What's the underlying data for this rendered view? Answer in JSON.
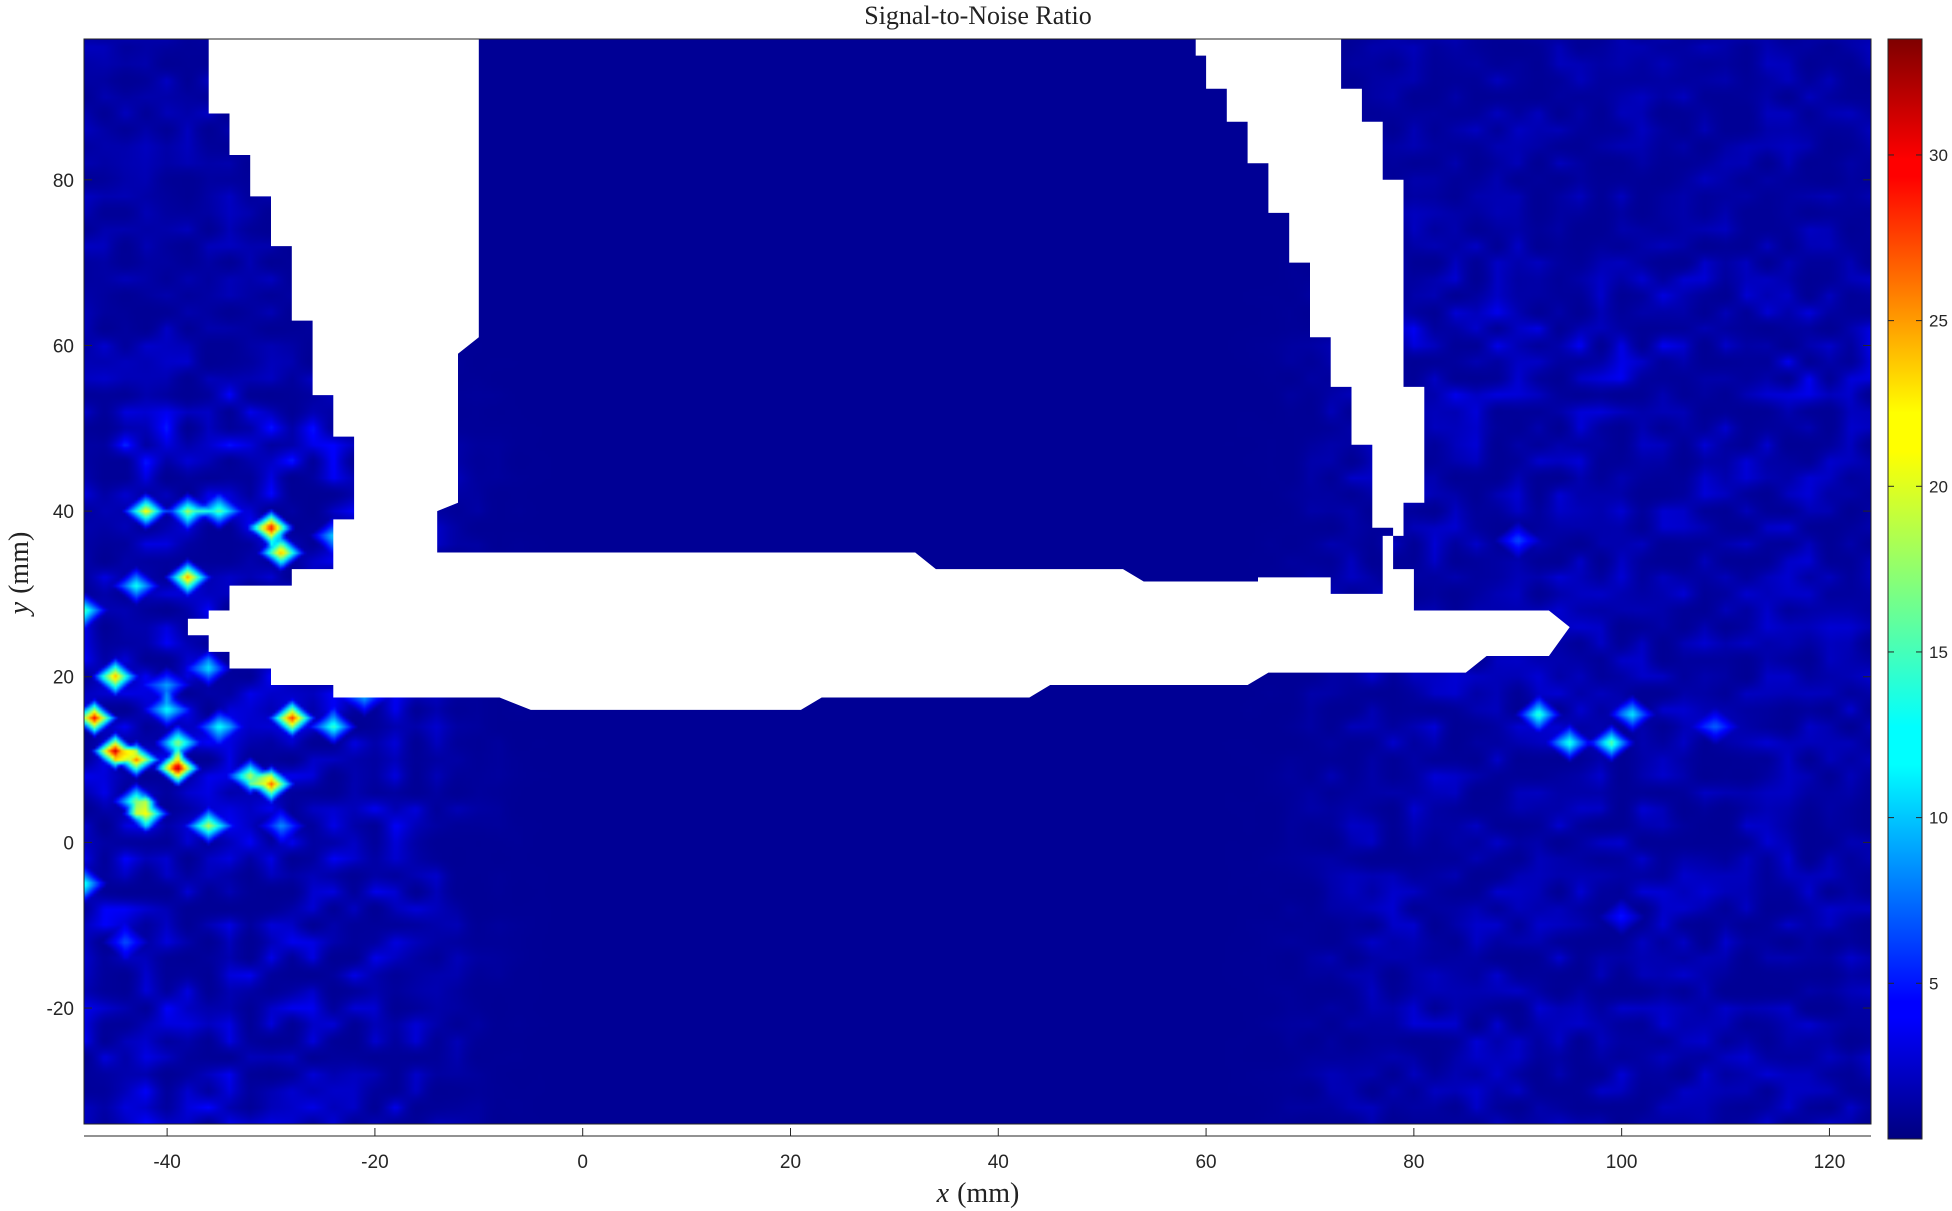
{
  "chart_data": {
    "type": "heatmap",
    "title": "Signal-to-Noise Ratio",
    "xlabel_var": "x",
    "xlabel_unit": "(mm)",
    "ylabel_var": "y",
    "ylabel_unit": "(mm)",
    "xlim": [
      -48,
      124
    ],
    "ylim": [
      -34,
      97
    ],
    "xticks": [
      -40,
      -20,
      0,
      20,
      40,
      60,
      80,
      100,
      120
    ],
    "yticks": [
      -20,
      0,
      20,
      40,
      60,
      80
    ],
    "colorbar": {
      "colormap": "jet",
      "range": [
        0.3,
        33.5
      ],
      "ticks": [
        5,
        10,
        15,
        20,
        25,
        30
      ]
    },
    "background_level": 1.0,
    "masked_color": "#ffffff",
    "masked_regions": [
      [
        [
          -36,
          97
        ],
        [
          -36,
          88
        ],
        [
          -34,
          88
        ],
        [
          -34,
          83
        ],
        [
          -32,
          83
        ],
        [
          -32,
          78
        ],
        [
          -30,
          78
        ],
        [
          -30,
          72
        ],
        [
          -28,
          72
        ],
        [
          -28,
          63
        ],
        [
          -26,
          63
        ],
        [
          -26,
          54
        ],
        [
          -24,
          54
        ],
        [
          -24,
          49
        ],
        [
          -22,
          49
        ],
        [
          -22,
          39
        ],
        [
          -24,
          39
        ],
        [
          -24,
          33
        ],
        [
          -28,
          33
        ],
        [
          -28,
          31
        ],
        [
          -34,
          31
        ],
        [
          -34,
          28
        ],
        [
          -36,
          28
        ],
        [
          -36,
          27
        ],
        [
          -38,
          27
        ],
        [
          -38,
          25
        ],
        [
          -36,
          25
        ],
        [
          -36,
          23
        ],
        [
          -34,
          23
        ],
        [
          -34,
          21
        ],
        [
          -30,
          21
        ],
        [
          -30,
          19
        ],
        [
          -24,
          19
        ],
        [
          -24,
          17.5
        ],
        [
          -8,
          17.5
        ],
        [
          -8,
          17.5
        ],
        [
          -5,
          16
        ],
        [
          21,
          16
        ],
        [
          23,
          17.5
        ],
        [
          43,
          17.5
        ],
        [
          45,
          19
        ],
        [
          64,
          19
        ],
        [
          66,
          20.5
        ],
        [
          85,
          20.5
        ],
        [
          87,
          22.5
        ],
        [
          93,
          22.5
        ],
        [
          95,
          26
        ],
        [
          93,
          28
        ],
        [
          80,
          28
        ],
        [
          80,
          33
        ],
        [
          78,
          33
        ],
        [
          78,
          38
        ],
        [
          76,
          38
        ],
        [
          76,
          48
        ],
        [
          74,
          48
        ],
        [
          74,
          55
        ],
        [
          72,
          55
        ],
        [
          72,
          61
        ],
        [
          70,
          61
        ],
        [
          70,
          70
        ],
        [
          68,
          70
        ],
        [
          68,
          76
        ],
        [
          66,
          76
        ],
        [
          66,
          82
        ],
        [
          64,
          82
        ],
        [
          64,
          87
        ],
        [
          62,
          87
        ],
        [
          62,
          91
        ],
        [
          60,
          91
        ],
        [
          60,
          95
        ],
        [
          59,
          95
        ],
        [
          59,
          97
        ],
        [
          73,
          97
        ],
        [
          73,
          91
        ],
        [
          75,
          91
        ],
        [
          75,
          87
        ],
        [
          77,
          87
        ],
        [
          77,
          80
        ],
        [
          79,
          80
        ],
        [
          79,
          71
        ],
        [
          79,
          71
        ],
        [
          79,
          60
        ],
        [
          79,
          60
        ],
        [
          79,
          55
        ],
        [
          79,
          55
        ],
        [
          81,
          55
        ],
        [
          81,
          47
        ],
        [
          81,
          47
        ],
        [
          81,
          41
        ],
        [
          79,
          41
        ],
        [
          79,
          37
        ],
        [
          77,
          37
        ],
        [
          77,
          30
        ],
        [
          77,
          30
        ],
        [
          72,
          30
        ],
        [
          72,
          32
        ],
        [
          65,
          32
        ],
        [
          65,
          31.5
        ],
        [
          54,
          31.5
        ],
        [
          52,
          33
        ],
        [
          34,
          33
        ],
        [
          32,
          35
        ],
        [
          -14,
          35
        ],
        [
          -14,
          40
        ],
        [
          -12,
          41
        ],
        [
          -12,
          59
        ],
        [
          -10,
          61
        ],
        [
          -10,
          97
        ]
      ]
    ],
    "hotspots": [
      [
        -42,
        40,
        18
      ],
      [
        -38,
        40,
        14
      ],
      [
        -35,
        40,
        12
      ],
      [
        -30,
        38,
        28
      ],
      [
        -29,
        35,
        22
      ],
      [
        -24,
        37,
        10
      ],
      [
        -43,
        31,
        12
      ],
      [
        -38,
        32,
        20
      ],
      [
        -48,
        28,
        12
      ],
      [
        -45,
        20,
        22
      ],
      [
        -40,
        19,
        8
      ],
      [
        -47,
        15,
        28
      ],
      [
        -45,
        11,
        30
      ],
      [
        -43,
        10,
        24
      ],
      [
        -39,
        9,
        32
      ],
      [
        -39,
        12,
        16
      ],
      [
        -40,
        16,
        10
      ],
      [
        -35,
        14,
        10
      ],
      [
        -28,
        15,
        24
      ],
      [
        -24,
        14,
        14
      ],
      [
        -32,
        8,
        18
      ],
      [
        -30,
        7,
        24
      ],
      [
        -43,
        5,
        16
      ],
      [
        -42,
        3.5,
        20
      ],
      [
        -36,
        2,
        16
      ],
      [
        -29,
        2,
        8
      ],
      [
        -48,
        -5,
        12
      ],
      [
        -44,
        -12,
        6
      ],
      [
        -21,
        17.5,
        8
      ],
      [
        -36,
        21,
        10
      ],
      [
        90,
        36.5,
        6
      ],
      [
        92,
        15.5,
        13
      ],
      [
        95,
        12,
        12
      ],
      [
        99,
        12,
        15
      ],
      [
        101,
        15.5,
        11
      ],
      [
        109,
        14,
        5
      ],
      [
        100,
        -9,
        4
      ]
    ],
    "noise_regions": [
      [
        -48,
        -34,
        -20,
        48,
        2.6
      ],
      [
        78,
        -34,
        124,
        60,
        1.6
      ],
      [
        -48,
        48,
        -30,
        97,
        1.2
      ],
      [
        82,
        60,
        124,
        97,
        1.1
      ]
    ]
  }
}
